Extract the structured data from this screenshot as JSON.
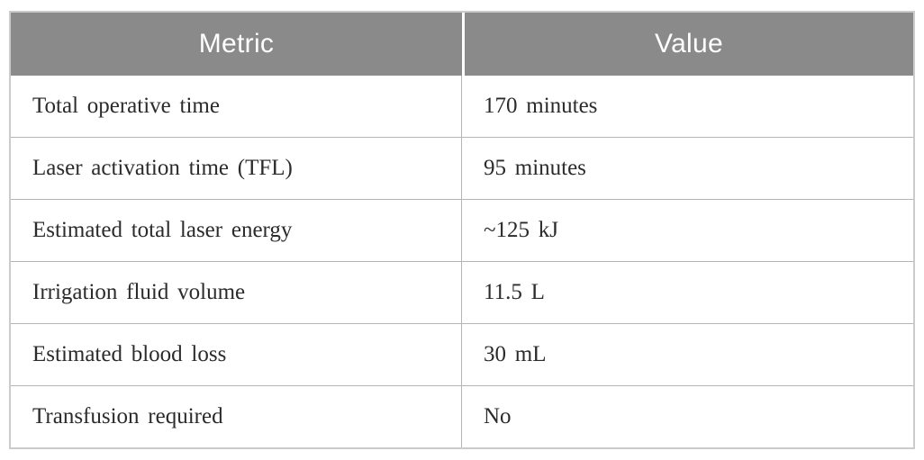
{
  "colors": {
    "header_bg": "#8a8a8a",
    "header_text": "#ffffff",
    "body_text": "#2b2b2b",
    "grid_line": "#b5b5b5",
    "outer_border": "#cbcbcb"
  },
  "table": {
    "columns": [
      {
        "label": "Metric"
      },
      {
        "label": "Value"
      }
    ],
    "rows": [
      {
        "metric": "Total operative time",
        "value": "170 minutes"
      },
      {
        "metric": "Laser activation time (TFL)",
        "value": "95 minutes"
      },
      {
        "metric": "Estimated total laser energy",
        "value": "~125 kJ"
      },
      {
        "metric": "Irrigation fluid volume",
        "value": "11.5 L"
      },
      {
        "metric": "Estimated blood loss",
        "value": "30 mL"
      },
      {
        "metric": "Transfusion required",
        "value": "No"
      }
    ]
  },
  "chart_data": {
    "type": "table",
    "columns": [
      "Metric",
      "Value"
    ],
    "rows": [
      [
        "Total operative time",
        "170 minutes"
      ],
      [
        "Laser activation time (TFL)",
        "95 minutes"
      ],
      [
        "Estimated total laser energy",
        "~125 kJ"
      ],
      [
        "Irrigation fluid volume",
        "11.5 L"
      ],
      [
        "Estimated blood loss",
        "30 mL"
      ],
      [
        "Transfusion required",
        "No"
      ]
    ]
  }
}
